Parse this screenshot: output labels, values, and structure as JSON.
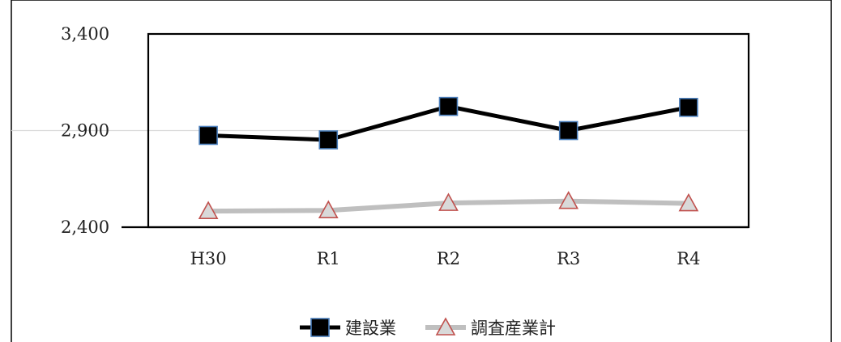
{
  "chart_data": {
    "type": "line",
    "title": "",
    "xlabel": "",
    "ylabel": "",
    "categories": [
      "H30",
      "R1",
      "R2",
      "R3",
      "R4"
    ],
    "y_ticks": [
      "2,400",
      "2,900",
      "3,400"
    ],
    "ylim": [
      2400,
      3400
    ],
    "grid": true,
    "legend_position": "bottom",
    "series": [
      {
        "name": "建設業",
        "values": [
          2875,
          2852,
          3025,
          2900,
          3020
        ],
        "line_color": "#000000",
        "marker": "square",
        "marker_fill": "#000000",
        "marker_stroke": "#4a7ebb"
      },
      {
        "name": "調査産業計",
        "values": [
          2483,
          2487,
          2525,
          2535,
          2523
        ],
        "line_color": "#bfbfbf",
        "marker": "triangle",
        "marker_fill": "#d9d9d9",
        "marker_stroke": "#c0504d"
      }
    ]
  }
}
